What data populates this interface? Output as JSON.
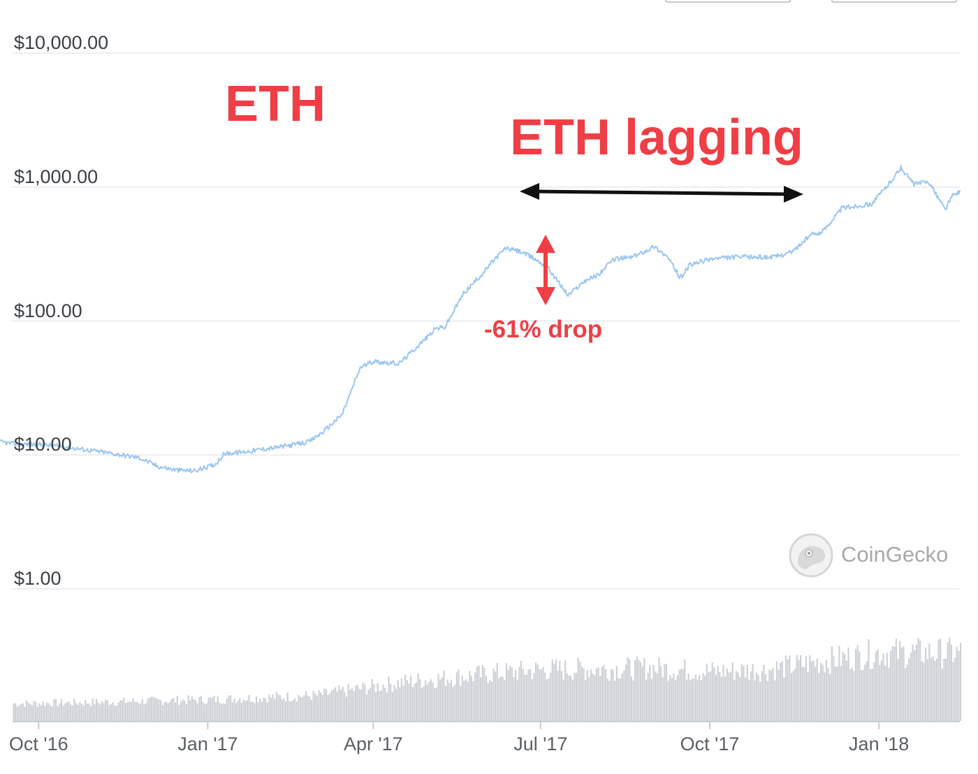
{
  "chart_data": {
    "type": "line",
    "title": "",
    "annotations": {
      "asset_label": "ETH",
      "range_label": "ETH lagging",
      "drop_label": "-61% drop"
    },
    "watermark": "CoinGecko",
    "y_axis": {
      "scale": "log",
      "ylim": [
        1,
        10000
      ],
      "ticks": [
        10000,
        1000,
        100,
        10,
        1
      ],
      "tick_labels": [
        "$10,000.00",
        "$1,000.00",
        "$100.00",
        "$10.00",
        "$1.00"
      ]
    },
    "x_axis": {
      "xlim": [
        "2016-09-10",
        "2018-02-14"
      ],
      "ticks": [
        "2016-10-01",
        "2017-01-01",
        "2017-04-01",
        "2017-07-01",
        "2017-10-01",
        "2018-01-01"
      ],
      "tick_labels": [
        "Oct '16",
        "Jan '17",
        "Apr '17",
        "Jul '17",
        "Oct '17",
        "Jan '18"
      ]
    },
    "grid": true,
    "legend": "none",
    "colors": {
      "price_line": "#9cc6f0",
      "volume_bars": "#cdd1d6",
      "annotation": "#ef3e45",
      "arrow": "#111111"
    },
    "series": [
      {
        "x": [
          "2016-09-10",
          "2016-09-20",
          "2016-10-01",
          "2016-10-15",
          "2016-10-25",
          "2016-11-05",
          "2016-11-15",
          "2016-11-25",
          "2016-12-05",
          "2016-12-15",
          "2016-12-25",
          "2017-01-05",
          "2017-01-10",
          "2017-01-20",
          "2017-01-30",
          "2017-02-10",
          "2017-02-25",
          "2017-03-05",
          "2017-03-15",
          "2017-03-25",
          "2017-04-01",
          "2017-04-15",
          "2017-04-30",
          "2017-05-05",
          "2017-05-10",
          "2017-05-20",
          "2017-05-31",
          "2017-06-05",
          "2017-06-12",
          "2017-06-20",
          "2017-06-28",
          "2017-07-05",
          "2017-07-16",
          "2017-07-25",
          "2017-08-01",
          "2017-08-10",
          "2017-08-20",
          "2017-09-01",
          "2017-09-08",
          "2017-09-15",
          "2017-09-20",
          "2017-10-01",
          "2017-10-15",
          "2017-10-25",
          "2017-11-05",
          "2017-11-15",
          "2017-11-25",
          "2017-12-01",
          "2017-12-12",
          "2017-12-20",
          "2017-12-28",
          "2018-01-05",
          "2018-01-13",
          "2018-01-20",
          "2018-01-28",
          "2018-02-06",
          "2018-02-10",
          "2018-02-14"
        ],
        "values": [
          12.5,
          12.0,
          12.0,
          11.5,
          11.0,
          10.5,
          10.0,
          9.5,
          8.2,
          7.7,
          7.6,
          8.5,
          10.2,
          10.5,
          11.0,
          11.5,
          12.5,
          15.0,
          20.0,
          45.0,
          50.0,
          48.0,
          75.0,
          88.0,
          90.0,
          160.0,
          230.0,
          280.0,
          350.0,
          330.0,
          290.0,
          250.0,
          155.0,
          200.0,
          220.0,
          290.0,
          300.0,
          360.0,
          300.0,
          210.0,
          260.0,
          290.0,
          300.0,
          300.0,
          300.0,
          330.0,
          440.0,
          460.0,
          700.0,
          720.0,
          750.0,
          1000.0,
          1390.0,
          1050.0,
          1100.0,
          680.0,
          860.0,
          930.0
        ]
      }
    ],
    "volume": {
      "note": "relative trading volume bars (unscaled)",
      "x": [
        "2016-09-10",
        "2016-11-01",
        "2017-01-01",
        "2017-03-01",
        "2017-04-15",
        "2017-06-01",
        "2017-07-01",
        "2017-09-01",
        "2017-10-01",
        "2017-11-01",
        "2017-12-01",
        "2018-01-01",
        "2018-02-14"
      ],
      "values": [
        0.2,
        0.22,
        0.25,
        0.3,
        0.45,
        0.55,
        0.6,
        0.62,
        0.58,
        0.6,
        0.7,
        0.8,
        0.8
      ]
    }
  }
}
